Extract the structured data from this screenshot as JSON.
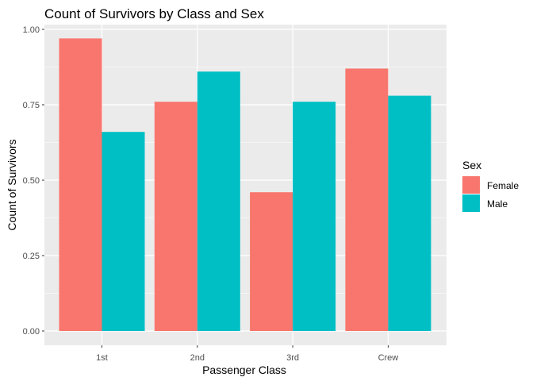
{
  "chart_data": {
    "type": "bar",
    "title": "Count of Survivors by Class and Sex",
    "xlabel": "Passenger Class",
    "ylabel": "Count of Survivors",
    "categories": [
      "1st",
      "2nd",
      "3rd",
      "Crew"
    ],
    "series": [
      {
        "name": "Female",
        "values": [
          0.97,
          0.76,
          0.46,
          0.87
        ],
        "color": "#F8766D"
      },
      {
        "name": "Male",
        "values": [
          0.66,
          0.86,
          0.76,
          0.78
        ],
        "color": "#00BFC4"
      }
    ],
    "yticks": [
      "0.00",
      "0.25",
      "0.50",
      "0.75",
      "1.00"
    ],
    "ylim": [
      0,
      1.02
    ],
    "legend": {
      "title": "Sex",
      "position": "right"
    },
    "grid": true,
    "panel_color": "#EBEBEB",
    "grid_color": "#FFFFFF"
  }
}
